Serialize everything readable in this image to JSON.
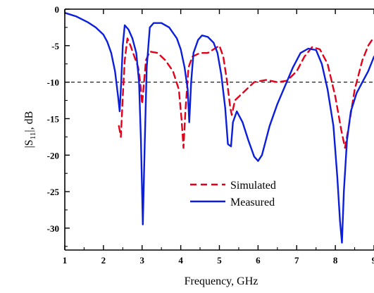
{
  "chart_data": {
    "type": "line",
    "title": "",
    "xlabel": "Frequency, GHz",
    "ylabel": "|S11|, dB",
    "xlim": [
      1,
      9
    ],
    "ylim": [
      -33,
      0
    ],
    "x_ticks": [
      "1",
      "2",
      "3",
      "4",
      "5",
      "6",
      "7",
      "8",
      "9"
    ],
    "y_ticks": [
      "0",
      "-5",
      "-10",
      "-15",
      "-20",
      "-25",
      "-30"
    ],
    "reference_line": {
      "y": -10,
      "style": "dashed",
      "color": "#222222"
    },
    "legend": {
      "position": "center-right",
      "entries": [
        "Simulated",
        "Measured"
      ]
    },
    "series": [
      {
        "name": "Simulated",
        "color": "#e3001b",
        "style": "dashed",
        "points": [
          [
            2.4,
            -16.0
          ],
          [
            2.45,
            -17.5
          ],
          [
            2.5,
            -12.0
          ],
          [
            2.55,
            -7.0
          ],
          [
            2.62,
            -4.0
          ],
          [
            2.7,
            -5.0
          ],
          [
            2.8,
            -6.5
          ],
          [
            2.9,
            -8.0
          ],
          [
            2.95,
            -10.0
          ],
          [
            3.0,
            -13.0
          ],
          [
            3.05,
            -10.0
          ],
          [
            3.1,
            -7.0
          ],
          [
            3.2,
            -5.8
          ],
          [
            3.4,
            -6.0
          ],
          [
            3.6,
            -7.0
          ],
          [
            3.8,
            -8.5
          ],
          [
            3.95,
            -11.0
          ],
          [
            4.02,
            -15.0
          ],
          [
            4.07,
            -19.0
          ],
          [
            4.12,
            -14.0
          ],
          [
            4.2,
            -8.0
          ],
          [
            4.3,
            -6.5
          ],
          [
            4.5,
            -6.0
          ],
          [
            4.7,
            -6.0
          ],
          [
            4.85,
            -5.5
          ],
          [
            5.0,
            -5.0
          ],
          [
            5.1,
            -6.5
          ],
          [
            5.2,
            -10.0
          ],
          [
            5.28,
            -13.5
          ],
          [
            5.32,
            -14.5
          ],
          [
            5.4,
            -12.5
          ],
          [
            5.6,
            -11.5
          ],
          [
            5.9,
            -10.0
          ],
          [
            6.2,
            -9.7
          ],
          [
            6.5,
            -10.0
          ],
          [
            6.75,
            -9.8
          ],
          [
            7.0,
            -8.5
          ],
          [
            7.2,
            -6.5
          ],
          [
            7.4,
            -5.2
          ],
          [
            7.6,
            -5.5
          ],
          [
            7.8,
            -7.5
          ],
          [
            8.0,
            -12.0
          ],
          [
            8.15,
            -16.5
          ],
          [
            8.25,
            -19.0
          ],
          [
            8.35,
            -16.0
          ],
          [
            8.5,
            -11.0
          ],
          [
            8.7,
            -7.0
          ],
          [
            8.85,
            -5.0
          ],
          [
            9.0,
            -3.8
          ]
        ]
      },
      {
        "name": "Measured",
        "color": "#0a1edc",
        "style": "solid",
        "points": [
          [
            1.0,
            -0.5
          ],
          [
            1.3,
            -1.0
          ],
          [
            1.6,
            -1.8
          ],
          [
            1.8,
            -2.5
          ],
          [
            2.0,
            -3.5
          ],
          [
            2.1,
            -4.5
          ],
          [
            2.2,
            -6.0
          ],
          [
            2.3,
            -8.5
          ],
          [
            2.38,
            -12.0
          ],
          [
            2.42,
            -14.0
          ],
          [
            2.46,
            -10.0
          ],
          [
            2.5,
            -5.0
          ],
          [
            2.55,
            -2.2
          ],
          [
            2.65,
            -2.8
          ],
          [
            2.75,
            -4.0
          ],
          [
            2.85,
            -6.0
          ],
          [
            2.92,
            -10.0
          ],
          [
            2.97,
            -18.0
          ],
          [
            3.02,
            -29.5
          ],
          [
            3.07,
            -18.0
          ],
          [
            3.12,
            -8.0
          ],
          [
            3.2,
            -2.5
          ],
          [
            3.3,
            -1.9
          ],
          [
            3.5,
            -1.9
          ],
          [
            3.7,
            -2.5
          ],
          [
            3.9,
            -4.0
          ],
          [
            4.0,
            -5.5
          ],
          [
            4.1,
            -8.0
          ],
          [
            4.18,
            -11.0
          ],
          [
            4.22,
            -15.5
          ],
          [
            4.27,
            -10.0
          ],
          [
            4.33,
            -6.0
          ],
          [
            4.45,
            -4.2
          ],
          [
            4.55,
            -3.6
          ],
          [
            4.7,
            -3.8
          ],
          [
            4.85,
            -4.6
          ],
          [
            4.95,
            -6.0
          ],
          [
            5.05,
            -9.0
          ],
          [
            5.15,
            -13.5
          ],
          [
            5.22,
            -18.5
          ],
          [
            5.3,
            -18.8
          ],
          [
            5.35,
            -15.5
          ],
          [
            5.45,
            -14.0
          ],
          [
            5.6,
            -15.5
          ],
          [
            5.75,
            -18.0
          ],
          [
            5.9,
            -20.2
          ],
          [
            6.0,
            -20.8
          ],
          [
            6.1,
            -20.0
          ],
          [
            6.3,
            -16.0
          ],
          [
            6.5,
            -13.0
          ],
          [
            6.7,
            -10.5
          ],
          [
            6.9,
            -8.0
          ],
          [
            7.1,
            -6.0
          ],
          [
            7.3,
            -5.4
          ],
          [
            7.5,
            -5.6
          ],
          [
            7.65,
            -7.5
          ],
          [
            7.8,
            -11.0
          ],
          [
            7.95,
            -16.0
          ],
          [
            8.05,
            -23.0
          ],
          [
            8.12,
            -29.0
          ],
          [
            8.17,
            -32.0
          ],
          [
            8.22,
            -25.0
          ],
          [
            8.3,
            -18.0
          ],
          [
            8.4,
            -14.0
          ],
          [
            8.55,
            -11.5
          ],
          [
            8.7,
            -10.0
          ],
          [
            8.85,
            -8.5
          ],
          [
            9.0,
            -6.5
          ]
        ]
      }
    ]
  }
}
